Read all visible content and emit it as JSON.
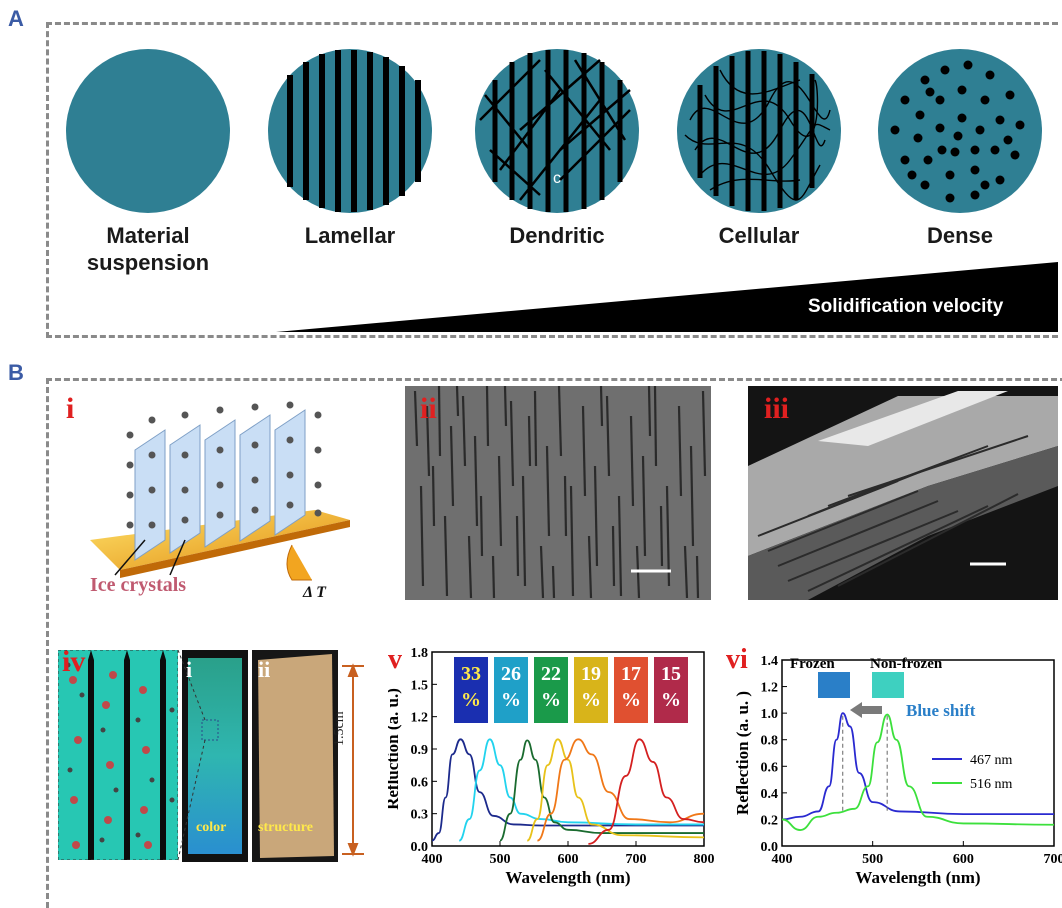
{
  "panel_a": {
    "letter": "A",
    "labels": [
      "Material\nsuspension",
      "Lamellar",
      "Dendritic",
      "Cellular",
      "Dense"
    ],
    "c_marker": "c",
    "velocity_label": "Solidification velocity",
    "fill_color": "#2f7f93"
  },
  "panel_b": {
    "letter": "B",
    "i": {
      "numeral": "i",
      "ice_label": "Ice crystals",
      "delta_t": "Δ T"
    },
    "ii": {
      "numeral": "ii"
    },
    "iii": {
      "numeral": "iii"
    },
    "iv": {
      "numeral": "iv",
      "sub_i": "i",
      "sub_ii": "ii",
      "color_label": "color",
      "structure_label": "structure",
      "scale_label": "1.5cm"
    },
    "v": {
      "numeral": "v",
      "swatches": [
        "33\n%",
        "26\n%",
        "22\n%",
        "19\n%",
        "17\n%",
        "15\n%"
      ]
    },
    "vi": {
      "numeral": "vi",
      "frozen": "Frozen",
      "non_frozen": "Non-frozen",
      "blue_shift": "Blue shift"
    }
  },
  "chart_data": [
    {
      "type": "line",
      "xlabel": "Wavelength (nm)",
      "ylabel": "Refluction (a. u.)",
      "xlim": [
        400,
        800
      ],
      "ylim": [
        0,
        1.8
      ],
      "xticks": [
        400,
        500,
        600,
        700,
        800
      ],
      "yticks": [
        0.0,
        0.3,
        0.6,
        0.9,
        1.2,
        1.5,
        1.8
      ],
      "xtick_labels": [
        "400",
        "500",
        "600",
        "700",
        "800"
      ],
      "ytick_labels": [
        "0.0",
        "0.3",
        "0.6",
        "0.9",
        "1.2",
        "1.5",
        "1.8"
      ],
      "series": [
        {
          "color": "#1c2a8c",
          "peak": 442,
          "x": [
            400,
            410,
            420,
            430,
            442,
            455,
            470,
            490,
            520,
            560,
            600,
            700,
            800
          ],
          "y": [
            0.05,
            0.12,
            0.45,
            0.85,
            0.99,
            0.85,
            0.5,
            0.28,
            0.2,
            0.19,
            0.19,
            0.19,
            0.19
          ]
        },
        {
          "color": "#22d3ee",
          "peak": 485,
          "x": [
            440,
            455,
            470,
            485,
            500,
            515,
            530,
            560,
            600,
            700,
            800
          ],
          "y": [
            0.05,
            0.25,
            0.7,
            0.99,
            0.75,
            0.45,
            0.3,
            0.25,
            0.22,
            0.2,
            0.2
          ]
        },
        {
          "color": "#1a6b2f",
          "peak": 540,
          "x": [
            500,
            515,
            530,
            540,
            552,
            565,
            580,
            600,
            650,
            800
          ],
          "y": [
            0.05,
            0.3,
            0.8,
            0.98,
            0.8,
            0.45,
            0.22,
            0.15,
            0.12,
            0.12
          ]
        },
        {
          "color": "#e8c21a",
          "peak": 585,
          "x": [
            540,
            555,
            570,
            585,
            600,
            615,
            635,
            680,
            800
          ],
          "y": [
            0.05,
            0.25,
            0.75,
            0.99,
            0.8,
            0.45,
            0.2,
            0.1,
            0.08
          ]
        },
        {
          "color": "#f07818",
          "peak": 615,
          "x": [
            555,
            575,
            595,
            615,
            635,
            660,
            690,
            750,
            800
          ],
          "y": [
            0.05,
            0.3,
            0.8,
            0.99,
            0.85,
            0.5,
            0.25,
            0.22,
            0.3
          ]
        },
        {
          "color": "#d42020",
          "peak": 705,
          "x": [
            630,
            660,
            685,
            705,
            725,
            745,
            770,
            800
          ],
          "y": [
            0.02,
            0.15,
            0.65,
            0.99,
            0.78,
            0.45,
            0.25,
            0.22
          ]
        }
      ]
    },
    {
      "type": "line",
      "xlabel": "Wavelength (nm)",
      "ylabel": "Reflection (a. u. )",
      "xlim": [
        400,
        700
      ],
      "ylim": [
        0,
        1.4
      ],
      "xticks": [
        400,
        500,
        600,
        700
      ],
      "yticks": [
        0.0,
        0.2,
        0.4,
        0.6,
        0.8,
        1.0,
        1.2,
        1.4
      ],
      "xtick_labels": [
        "400",
        "500",
        "600",
        "700"
      ],
      "ytick_labels": [
        "0.0",
        "0.2",
        "0.4",
        "0.6",
        "0.8",
        "1.0",
        "1.2",
        "1.4"
      ],
      "series": [
        {
          "name": "467 nm",
          "color": "#2a2ad0",
          "x": [
            400,
            420,
            440,
            452,
            460,
            467,
            475,
            485,
            500,
            530,
            600,
            700
          ],
          "y": [
            0.2,
            0.22,
            0.26,
            0.45,
            0.8,
            1.0,
            0.9,
            0.55,
            0.33,
            0.26,
            0.24,
            0.24
          ]
        },
        {
          "name": "516 nm",
          "color": "#3ce03c",
          "x": [
            400,
            420,
            440,
            460,
            480,
            495,
            505,
            516,
            526,
            540,
            560,
            600,
            700
          ],
          "y": [
            0.2,
            0.12,
            0.22,
            0.25,
            0.28,
            0.45,
            0.78,
            0.99,
            0.8,
            0.45,
            0.22,
            0.17,
            0.16
          ]
        }
      ],
      "legend_position": "right"
    }
  ]
}
